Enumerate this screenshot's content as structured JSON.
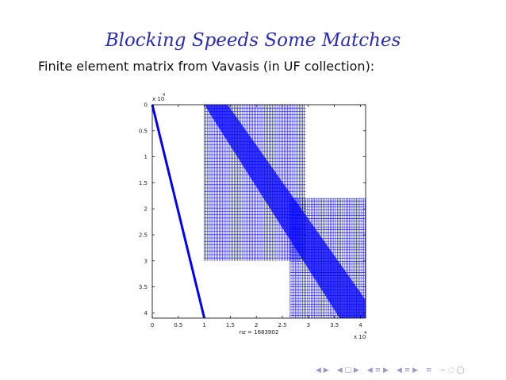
{
  "slide": {
    "title": "Blocking Speeds Some Matches",
    "subtitle": "Finite element matrix from Vavasis (in UF collection):"
  },
  "chart_data": {
    "type": "spy",
    "xlabel": "nz = 1683902",
    "x_multiplier": "x 10",
    "x_multiplier_exp": "4",
    "y_multiplier": "x 10",
    "y_multiplier_exp": "4",
    "xlim": [
      0,
      4.1
    ],
    "ylim": [
      0,
      4.1
    ],
    "y_reversed": true,
    "x_ticks": [
      0,
      0.5,
      1,
      1.5,
      2,
      2.5,
      3,
      3.5,
      4
    ],
    "x_tick_labels": [
      "0",
      "0.5",
      "1",
      "1.5",
      "2",
      "2.5",
      "3",
      "3.5",
      "4"
    ],
    "y_ticks": [
      0,
      0.5,
      1,
      1.5,
      2,
      2.5,
      3,
      3.5,
      4
    ],
    "y_tick_labels": [
      "0",
      "0.5",
      "1",
      "1.5",
      "2",
      "2.5",
      "3",
      "3.5",
      "4"
    ],
    "marker_color": "#0000ff",
    "structures": {
      "diagonal_band": {
        "from": [
          0,
          0
        ],
        "to": [
          1,
          4.1
        ]
      },
      "upper_block": {
        "x": [
          1,
          2.95
        ],
        "y": [
          0,
          3.0
        ]
      },
      "right_block": {
        "x": [
          2.65,
          4.1
        ],
        "y": [
          1.8,
          4.1
        ]
      },
      "diagonal_dense": {
        "from": [
          1,
          0
        ],
        "to": [
          4.1,
          4.1
        ]
      }
    }
  },
  "nav": {
    "icons": [
      "◀ ▶",
      "◀ □ ▶",
      "◀ ≡ ▶",
      "◀ ≡ ▶",
      "≡",
      "∽ ◌ ◯"
    ]
  }
}
